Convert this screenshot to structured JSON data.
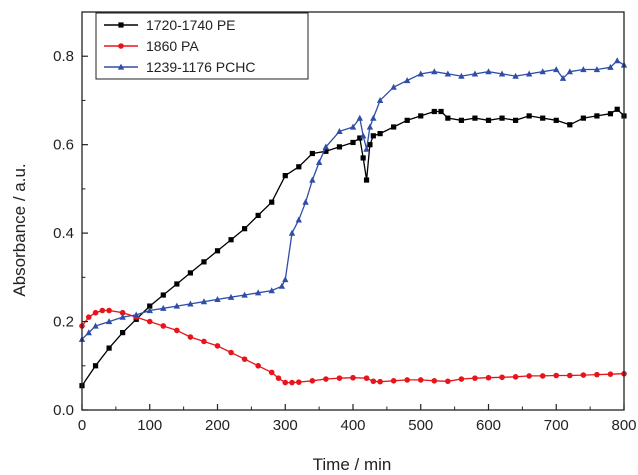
{
  "chart_data": {
    "type": "line",
    "title": "",
    "xlabel": "Time / min",
    "ylabel": "Absorbance / a.u.",
    "xlim": [
      0,
      800
    ],
    "ylim": [
      0,
      0.9
    ],
    "xticks": [
      0,
      100,
      200,
      300,
      400,
      500,
      600,
      700,
      800
    ],
    "yticks": [
      0.0,
      0.2,
      0.4,
      0.6,
      0.8
    ],
    "ytick_labels": [
      "0.0",
      "0.2",
      "0.4",
      "0.6",
      "0.8"
    ],
    "grid": false,
    "legend_position": "top-left",
    "series": [
      {
        "name": "1720-1740 PE",
        "color": "#000000",
        "marker": "square",
        "x": [
          0,
          20,
          40,
          60,
          80,
          100,
          120,
          140,
          160,
          180,
          200,
          220,
          240,
          260,
          280,
          300,
          320,
          340,
          360,
          380,
          400,
          410,
          415,
          420,
          425,
          430,
          440,
          460,
          480,
          500,
          520,
          530,
          540,
          560,
          580,
          600,
          620,
          640,
          660,
          680,
          700,
          720,
          740,
          760,
          780,
          790,
          800
        ],
        "values": [
          0.055,
          0.1,
          0.14,
          0.175,
          0.205,
          0.235,
          0.26,
          0.285,
          0.31,
          0.335,
          0.36,
          0.385,
          0.41,
          0.44,
          0.47,
          0.53,
          0.55,
          0.58,
          0.585,
          0.595,
          0.605,
          0.615,
          0.57,
          0.52,
          0.6,
          0.62,
          0.625,
          0.64,
          0.655,
          0.665,
          0.675,
          0.675,
          0.66,
          0.655,
          0.66,
          0.655,
          0.66,
          0.655,
          0.665,
          0.66,
          0.655,
          0.645,
          0.66,
          0.665,
          0.67,
          0.68,
          0.665
        ]
      },
      {
        "name": "1860 PA",
        "color": "#e8141c",
        "marker": "circle",
        "x": [
          0,
          10,
          20,
          30,
          40,
          60,
          80,
          100,
          120,
          140,
          160,
          180,
          200,
          220,
          240,
          260,
          280,
          290,
          300,
          310,
          320,
          340,
          360,
          380,
          400,
          420,
          430,
          440,
          460,
          480,
          500,
          520,
          540,
          560,
          580,
          600,
          620,
          640,
          660,
          680,
          700,
          720,
          740,
          760,
          780,
          800
        ],
        "values": [
          0.19,
          0.21,
          0.22,
          0.225,
          0.225,
          0.22,
          0.21,
          0.2,
          0.19,
          0.18,
          0.165,
          0.155,
          0.145,
          0.13,
          0.115,
          0.1,
          0.085,
          0.072,
          0.062,
          0.062,
          0.063,
          0.066,
          0.07,
          0.072,
          0.073,
          0.072,
          0.065,
          0.064,
          0.066,
          0.068,
          0.068,
          0.066,
          0.065,
          0.07,
          0.072,
          0.073,
          0.074,
          0.075,
          0.077,
          0.077,
          0.078,
          0.078,
          0.079,
          0.08,
          0.081,
          0.082
        ]
      },
      {
        "name": "1239-1176 PCHC",
        "color": "#2f4ea8",
        "marker": "triangle",
        "x": [
          0,
          10,
          20,
          40,
          60,
          80,
          100,
          120,
          140,
          160,
          180,
          200,
          220,
          240,
          260,
          280,
          295,
          300,
          310,
          320,
          330,
          340,
          350,
          360,
          380,
          400,
          410,
          415,
          420,
          425,
          430,
          440,
          460,
          480,
          500,
          520,
          540,
          560,
          580,
          600,
          620,
          640,
          660,
          680,
          700,
          710,
          720,
          740,
          760,
          780,
          790,
          800
        ],
        "values": [
          0.16,
          0.175,
          0.19,
          0.2,
          0.21,
          0.215,
          0.225,
          0.23,
          0.235,
          0.24,
          0.245,
          0.25,
          0.255,
          0.26,
          0.265,
          0.27,
          0.28,
          0.295,
          0.4,
          0.43,
          0.47,
          0.52,
          0.56,
          0.595,
          0.63,
          0.64,
          0.66,
          0.62,
          0.59,
          0.64,
          0.66,
          0.7,
          0.73,
          0.745,
          0.76,
          0.765,
          0.76,
          0.755,
          0.76,
          0.765,
          0.76,
          0.755,
          0.76,
          0.765,
          0.77,
          0.75,
          0.765,
          0.77,
          0.77,
          0.775,
          0.79,
          0.78
        ]
      }
    ]
  }
}
